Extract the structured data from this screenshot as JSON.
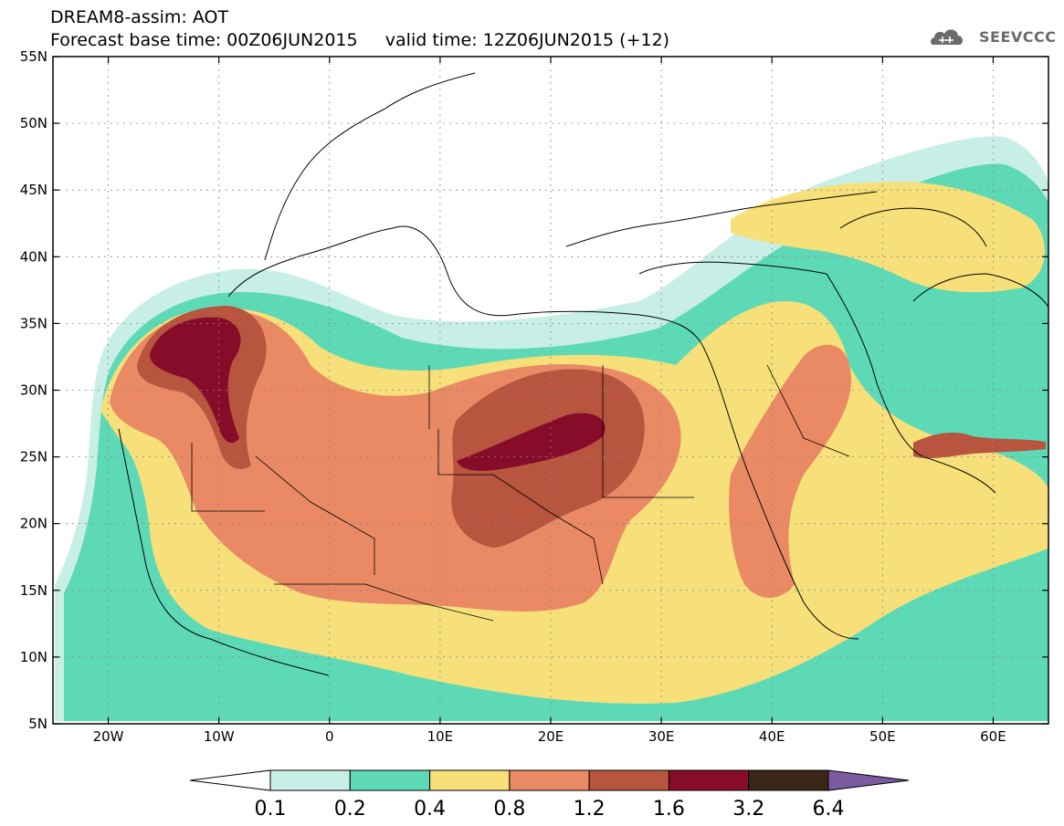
{
  "header": {
    "title_line1": "DREAM8-assim: AOT",
    "title_line2": "Forecast base time: 00Z06JUN2015     valid time: 12Z06JUN2015 (+12)",
    "logo_text": "SEEVCCC"
  },
  "map": {
    "lon_range": [
      -25,
      65
    ],
    "lat_range": [
      5,
      55
    ],
    "lon_ticks": [
      {
        "value": -20,
        "label": "20W"
      },
      {
        "value": -10,
        "label": "10W"
      },
      {
        "value": 0,
        "label": "0"
      },
      {
        "value": 10,
        "label": "10E"
      },
      {
        "value": 20,
        "label": "20E"
      },
      {
        "value": 30,
        "label": "30E"
      },
      {
        "value": 40,
        "label": "40E"
      },
      {
        "value": 50,
        "label": "50E"
      },
      {
        "value": 60,
        "label": "60E"
      }
    ],
    "lat_ticks": [
      {
        "value": 55,
        "label": "55N"
      },
      {
        "value": 50,
        "label": "50N"
      },
      {
        "value": 45,
        "label": "45N"
      },
      {
        "value": 40,
        "label": "40N"
      },
      {
        "value": 35,
        "label": "35N"
      },
      {
        "value": 30,
        "label": "30N"
      },
      {
        "value": 25,
        "label": "25N"
      },
      {
        "value": 20,
        "label": "20N"
      },
      {
        "value": 15,
        "label": "15N"
      },
      {
        "value": 10,
        "label": "10N"
      },
      {
        "value": 5,
        "label": "5N"
      }
    ],
    "grid": true
  },
  "colorbar": {
    "labels": [
      "0.1",
      "0.2",
      "0.4",
      "0.8",
      "1.2",
      "1.6",
      "3.2",
      "6.4"
    ],
    "colors": [
      "#ffffff",
      "#c8efe6",
      "#5ed9b6",
      "#f7e07a",
      "#e98a64",
      "#b7553f",
      "#860c2a",
      "#3a2616",
      "#7b5aa0"
    ]
  },
  "layer_colors": {
    "l1": "#c8efe6",
    "l2": "#5ed9b6",
    "l3": "#f7e07a",
    "l4": "#e98a64",
    "l5": "#b7553f",
    "l6": "#860c2a"
  }
}
